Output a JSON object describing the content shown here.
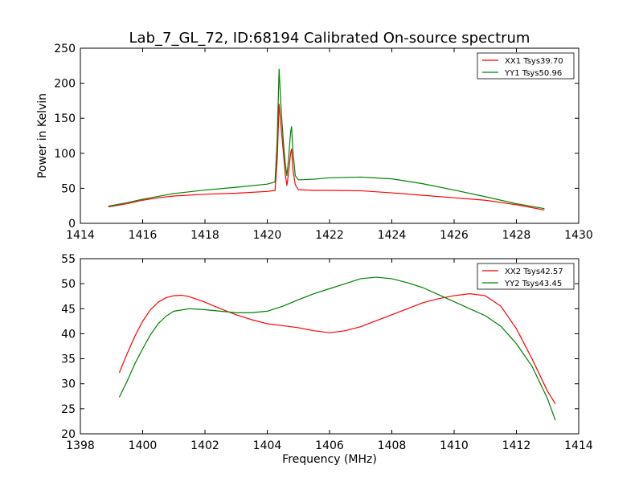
{
  "figure": {
    "title": "Lab_7_GL_72, ID:68194 Calibrated On-source spectrum"
  },
  "chart_data": [
    {
      "type": "line",
      "xlabel": "",
      "ylabel": "Power in Kelvin",
      "xlim": [
        1414,
        1430
      ],
      "ylim": [
        0,
        250
      ],
      "xticks": [
        1414,
        1416,
        1418,
        1420,
        1422,
        1424,
        1426,
        1428,
        1430
      ],
      "yticks": [
        0,
        50,
        100,
        150,
        200,
        250
      ],
      "grid": false,
      "legend_position": "top-right",
      "series": [
        {
          "name": "XX1 Tsys39.70",
          "color": "#ff0000",
          "points": [
            [
              1414.9,
              23.5
            ],
            [
              1415.5,
              28
            ],
            [
              1416,
              33
            ],
            [
              1416.5,
              36.5
            ],
            [
              1417,
              39
            ],
            [
              1418,
              41.5
            ],
            [
              1419,
              43
            ],
            [
              1420,
              45.5
            ],
            [
              1420.25,
              47
            ],
            [
              1420.32,
              90
            ],
            [
              1420.38,
              170
            ],
            [
              1420.45,
              135
            ],
            [
              1420.52,
              100
            ],
            [
              1420.58,
              70
            ],
            [
              1420.63,
              54
            ],
            [
              1420.68,
              70
            ],
            [
              1420.75,
              100
            ],
            [
              1420.78,
              106
            ],
            [
              1420.83,
              75
            ],
            [
              1420.9,
              55
            ],
            [
              1421,
              48
            ],
            [
              1421.5,
              47
            ],
            [
              1422,
              47
            ],
            [
              1423,
              46.5
            ],
            [
              1424,
              43.5
            ],
            [
              1425,
              40
            ],
            [
              1426,
              36.5
            ],
            [
              1427,
              33
            ],
            [
              1428,
              26.5
            ],
            [
              1428.9,
              19
            ]
          ]
        },
        {
          "name": "YY1 Tsys50.96",
          "color": "#008000",
          "points": [
            [
              1414.9,
              24.5
            ],
            [
              1415.5,
              29.5
            ],
            [
              1416,
              34.5
            ],
            [
              1416.5,
              38.5
            ],
            [
              1417,
              42.5
            ],
            [
              1418,
              47.5
            ],
            [
              1419,
              51.5
            ],
            [
              1420,
              56
            ],
            [
              1420.25,
              59
            ],
            [
              1420.32,
              120
            ],
            [
              1420.38,
              220
            ],
            [
              1420.45,
              160
            ],
            [
              1420.52,
              115
            ],
            [
              1420.58,
              85
            ],
            [
              1420.63,
              68
            ],
            [
              1420.68,
              90
            ],
            [
              1420.75,
              130
            ],
            [
              1420.78,
              138
            ],
            [
              1420.83,
              100
            ],
            [
              1420.9,
              68
            ],
            [
              1421,
              62
            ],
            [
              1421.5,
              63
            ],
            [
              1422,
              65
            ],
            [
              1423,
              66
            ],
            [
              1424,
              63.5
            ],
            [
              1425,
              56.5
            ],
            [
              1426,
              47.5
            ],
            [
              1427,
              38
            ],
            [
              1428,
              28
            ],
            [
              1428.9,
              21
            ]
          ]
        }
      ]
    },
    {
      "type": "line",
      "xlabel": "Frequency (MHz)",
      "ylabel": "",
      "xlim": [
        1398,
        1414
      ],
      "ylim": [
        20,
        55
      ],
      "xticks": [
        1398,
        1400,
        1402,
        1404,
        1406,
        1408,
        1410,
        1412,
        1414
      ],
      "yticks": [
        20,
        25,
        30,
        35,
        40,
        45,
        50,
        55
      ],
      "grid": false,
      "legend_position": "top-right",
      "series": [
        {
          "name": "XX2 Tsys42.57",
          "color": "#ff0000",
          "points": [
            [
              1399.25,
              32.2
            ],
            [
              1399.5,
              36
            ],
            [
              1399.75,
              39.5
            ],
            [
              1400,
              42.5
            ],
            [
              1400.25,
              44.8
            ],
            [
              1400.5,
              46.3
            ],
            [
              1400.75,
              47.2
            ],
            [
              1401,
              47.6
            ],
            [
              1401.25,
              47.7
            ],
            [
              1401.5,
              47.4
            ],
            [
              1402,
              46.3
            ],
            [
              1402.5,
              45
            ],
            [
              1403,
              43.8
            ],
            [
              1403.5,
              42.8
            ],
            [
              1404,
              42
            ],
            [
              1404.5,
              41.6
            ],
            [
              1405,
              41.2
            ],
            [
              1405.5,
              40.6
            ],
            [
              1406,
              40.2
            ],
            [
              1406.5,
              40.6
            ],
            [
              1407,
              41.4
            ],
            [
              1407.5,
              42.6
            ],
            [
              1408,
              43.8
            ],
            [
              1408.5,
              45
            ],
            [
              1409,
              46.2
            ],
            [
              1409.5,
              47
            ],
            [
              1410,
              47.6
            ],
            [
              1410.5,
              48
            ],
            [
              1411,
              47.6
            ],
            [
              1411.5,
              45.5
            ],
            [
              1412,
              41
            ],
            [
              1412.5,
              35
            ],
            [
              1413,
              28.5
            ],
            [
              1413.25,
              26
            ]
          ]
        },
        {
          "name": "YY2 Tsys43.45",
          "color": "#008000",
          "points": [
            [
              1399.25,
              27.3
            ],
            [
              1399.5,
              30.5
            ],
            [
              1399.75,
              34
            ],
            [
              1400,
              37
            ],
            [
              1400.25,
              39.8
            ],
            [
              1400.5,
              42
            ],
            [
              1400.75,
              43.5
            ],
            [
              1401,
              44.5
            ],
            [
              1401.5,
              45
            ],
            [
              1402,
              44.8
            ],
            [
              1402.5,
              44.5
            ],
            [
              1403,
              44.2
            ],
            [
              1403.5,
              44.2
            ],
            [
              1404,
              44.5
            ],
            [
              1404.5,
              45.5
            ],
            [
              1405,
              46.8
            ],
            [
              1405.5,
              48
            ],
            [
              1406,
              49
            ],
            [
              1406.5,
              50
            ],
            [
              1407,
              51
            ],
            [
              1407.5,
              51.3
            ],
            [
              1408,
              51
            ],
            [
              1408.5,
              50.2
            ],
            [
              1409,
              49.2
            ],
            [
              1409.5,
              47.8
            ],
            [
              1410,
              46.4
            ],
            [
              1410.5,
              45
            ],
            [
              1411,
              43.6
            ],
            [
              1411.5,
              41.5
            ],
            [
              1412,
              38
            ],
            [
              1412.5,
              33.5
            ],
            [
              1413,
              27
            ],
            [
              1413.25,
              22.7
            ]
          ]
        }
      ]
    }
  ]
}
